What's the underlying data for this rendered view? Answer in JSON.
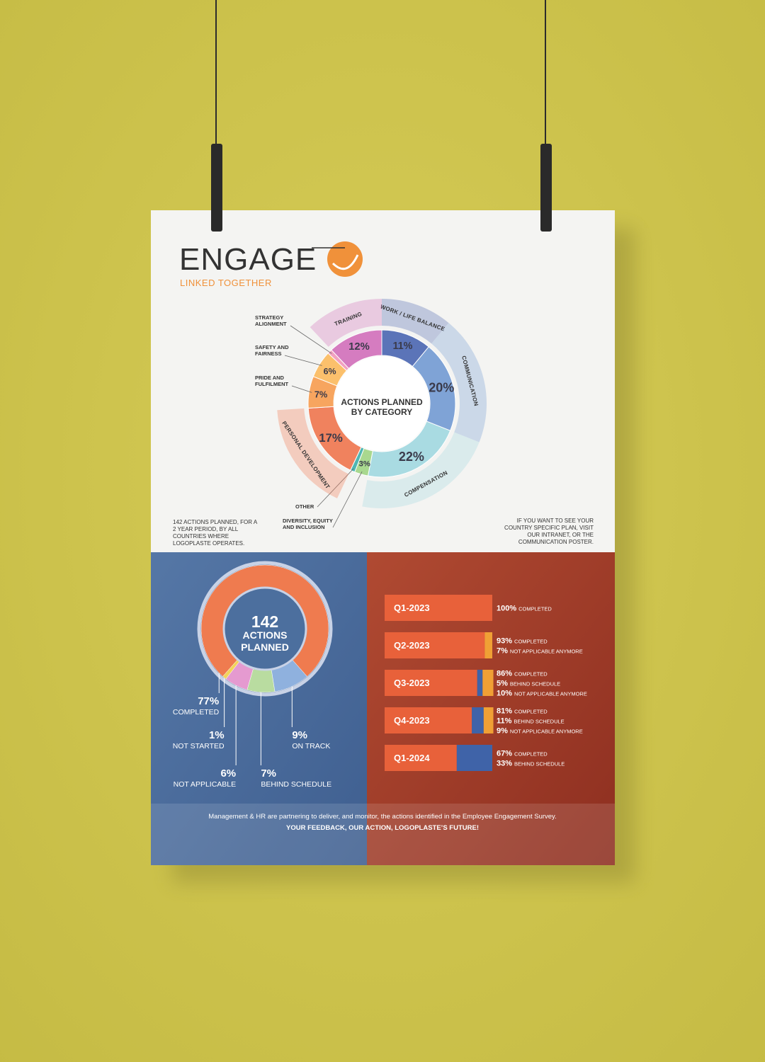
{
  "header": {
    "title": "ENGAGE",
    "tagline": "LINKED TOGETHER"
  },
  "notes": {
    "scope": "142 ACTIONS PLANNED, FOR A 2 YEAR PERIOD, BY ALL COUNTRIES WHERE LOGOPLASTE OPERATES.",
    "more_info": "IF YOU WANT TO SEE YOUR COUNTRY SPECIFIC PLAN, VISIT OUR INTRANET, OR THE COMMUNICATION POSTER."
  },
  "chart_data": [
    {
      "type": "pie",
      "title": "ACTIONS PLANNED BY CATEGORY",
      "categories": [
        "WORK / LIFE BALANCE",
        "COMMUNICATION",
        "COMPENSATION",
        "DIVERSITY, EQUITY AND INCLUSION",
        "OTHER",
        "PERSONAL DEVELOPMENT",
        "PRIDE AND FULFILMENT",
        "SAFETY AND FAIRNESS",
        "STRATEGY ALIGNMENT",
        "TRAINING"
      ],
      "values": [
        11,
        20,
        22,
        3,
        1,
        17,
        7,
        6,
        1,
        12
      ],
      "value_labels": [
        "11%",
        "20%",
        "22%",
        "3%",
        null,
        "17%",
        "7%",
        "6%",
        null,
        "12%"
      ],
      "colors": [
        "#5b74b8",
        "#7fa3d6",
        "#a9dbe2",
        "#a9d88f",
        "#4fb6b2",
        "#f0825e",
        "#f7a55f",
        "#fbc06c",
        "#f2a1c0",
        "#d57cc0"
      ]
    },
    {
      "type": "pie",
      "total": 142,
      "total_label": "ACTIONS PLANNED",
      "categories": [
        "COMPLETED",
        "NOT STARTED",
        "NOT APPLICABLE",
        "BEHIND SCHEDULE",
        "ON TRACK"
      ],
      "values": [
        77,
        1,
        6,
        7,
        9
      ],
      "value_labels": [
        "77%",
        "1%",
        "6%",
        "7%",
        "9%"
      ],
      "colors": [
        "#ef7b4f",
        "#f2d35a",
        "#e59ad0",
        "#b9dca0",
        "#8fb1de"
      ]
    },
    {
      "type": "bar",
      "orientation": "horizontal",
      "stacked": true,
      "categories": [
        "Q1-2023",
        "Q2-2023",
        "Q3-2023",
        "Q4-2023",
        "Q1-2024"
      ],
      "xlim": [
        0,
        100
      ],
      "series": [
        {
          "name": "COMPLETED",
          "color": "#e8613a",
          "values": [
            100,
            93,
            86,
            81,
            67
          ],
          "value_labels": [
            "100%",
            "93%",
            "86%",
            "81%",
            "67%"
          ]
        },
        {
          "name": "BEHIND SCHEDULE",
          "color": "#3f63a8",
          "values": [
            0,
            0,
            5,
            11,
            33
          ],
          "value_labels": [
            null,
            null,
            "5%",
            "11%",
            "33%"
          ]
        },
        {
          "name": "NOT APPLICABLE ANYMORE",
          "color": "#f0a035",
          "values": [
            0,
            7,
            10,
            9,
            0
          ],
          "value_labels": [
            null,
            "7%",
            "10%",
            "9%",
            null
          ]
        }
      ]
    }
  ],
  "footer": {
    "text": "Management & HR are partnering to deliver, and monitor, the actions identified in the Employee Engagement Survey.",
    "slogan": "YOUR FEEDBACK, OUR ACTION, LOGOPLASTE’S FUTURE!"
  }
}
